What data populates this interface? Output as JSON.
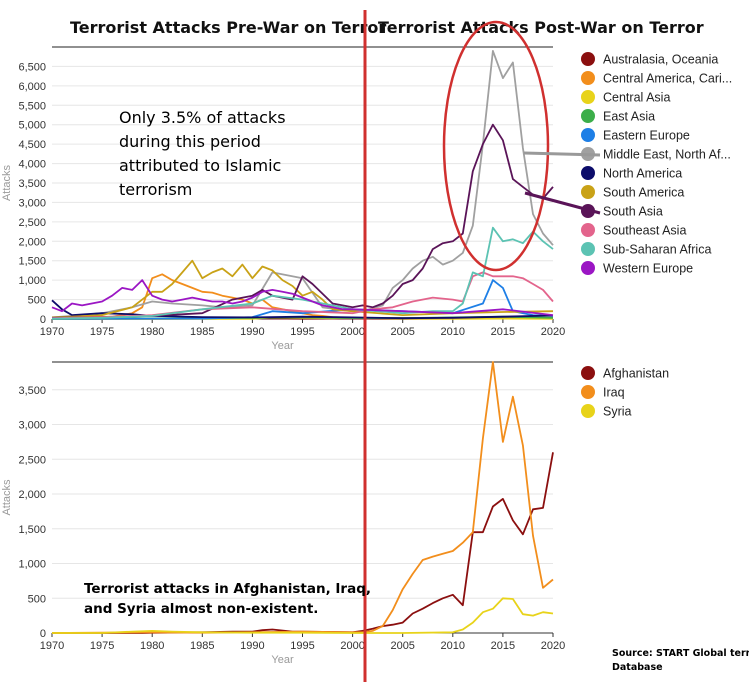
{
  "header": {
    "left_title": "Terrorist Attacks Pre-War on Terror",
    "right_title": "Terrorist Attacks Post-War on Terror"
  },
  "annotations": {
    "top_note_lines": [
      "Only 3.5% of attacks",
      "during this period",
      "attributed to Islamic",
      "terrorism"
    ],
    "bottom_note_lines": [
      "Terrorist attacks in Afghanistan, Iraq,",
      "and Syria almost non-existent."
    ],
    "source_lines": [
      "Source: START Global terrorism",
      "Database"
    ]
  },
  "colors": {
    "divider": "#d0302f",
    "ellipse": "#d0302f",
    "gridline": "#e6e6e6"
  },
  "chart_data": [
    {
      "type": "line",
      "xlabel": "Year",
      "ylabel": "Attacks",
      "xlim": [
        1970,
        2020
      ],
      "ylim": [
        0,
        7000
      ],
      "x_ticks": [
        1970,
        1975,
        1980,
        1985,
        1990,
        1995,
        2000,
        2005,
        2010,
        2015,
        2020
      ],
      "y_ticks": [
        0,
        500,
        1000,
        1500,
        2000,
        2500,
        3000,
        3500,
        4000,
        4500,
        5000,
        5500,
        6000,
        6500
      ],
      "y_tick_labels": [
        "0",
        "500",
        "1,000",
        "1,500",
        "2,000",
        "2,500",
        "3,000",
        "3,500",
        "4,000",
        "4,500",
        "5,000",
        "5,500",
        "6,000",
        "6,500"
      ],
      "x_tick_labels": [
        "1970",
        "1975",
        "1980",
        "1985",
        "1990",
        "1995",
        "2000",
        "2005",
        "2010",
        "2015",
        "2020"
      ],
      "legend": "right",
      "series": [
        {
          "name": "Australasia, Oceania",
          "color": "#8b0f0f",
          "x": [
            1970,
            1975,
            1980,
            1985,
            1990,
            1995,
            2000,
            2005,
            2010,
            2015,
            2020
          ],
          "y": [
            2,
            3,
            5,
            10,
            15,
            8,
            12,
            5,
            10,
            15,
            10
          ]
        },
        {
          "name": "Central America, Cari...",
          "color": "#f28e1c",
          "x": [
            1970,
            1972,
            1974,
            1976,
            1978,
            1979,
            1980,
            1981,
            1982,
            1983,
            1984,
            1985,
            1986,
            1987,
            1988,
            1989,
            1990,
            1991,
            1992,
            1993,
            1994,
            1995,
            1996,
            1997,
            1998,
            2000,
            2005,
            2010,
            2015,
            2020
          ],
          "y": [
            10,
            30,
            50,
            60,
            150,
            300,
            1050,
            1150,
            1000,
            900,
            800,
            700,
            680,
            600,
            550,
            500,
            400,
            500,
            300,
            250,
            200,
            150,
            100,
            80,
            50,
            30,
            20,
            15,
            10,
            10
          ]
        },
        {
          "name": "Central Asia",
          "color": "#e8d31a",
          "x": [
            1970,
            1990,
            1992,
            1995,
            1998,
            2000,
            2005,
            2010,
            2015,
            2020
          ],
          "y": [
            0,
            5,
            40,
            30,
            20,
            30,
            10,
            5,
            10,
            5
          ]
        },
        {
          "name": "East Asia",
          "color": "#3cae4a",
          "x": [
            1970,
            1975,
            1980,
            1985,
            1990,
            1995,
            2000,
            2005,
            2010,
            2015,
            2020
          ],
          "y": [
            5,
            10,
            15,
            20,
            30,
            40,
            25,
            20,
            40,
            60,
            30
          ]
        },
        {
          "name": "Eastern Europe",
          "color": "#1e7fe6",
          "x": [
            1970,
            1985,
            1990,
            1992,
            1995,
            2000,
            2005,
            2010,
            2013,
            2014,
            2015,
            2016,
            2018,
            2020
          ],
          "y": [
            5,
            10,
            50,
            200,
            150,
            250,
            200,
            150,
            400,
            1000,
            800,
            200,
            100,
            80
          ]
        },
        {
          "name": "Middle East, North Af...",
          "color": "#a0a0a0",
          "x": [
            1970,
            1972,
            1975,
            1978,
            1980,
            1982,
            1985,
            1987,
            1990,
            1992,
            1995,
            1997,
            2000,
            2001,
            2003,
            2004,
            2005,
            2006,
            2007,
            2008,
            2009,
            2010,
            2011,
            2012,
            2013,
            2014,
            2015,
            2016,
            2017,
            2018,
            2019,
            2020
          ],
          "y": [
            40,
            80,
            150,
            300,
            450,
            400,
            350,
            300,
            350,
            1200,
            1050,
            300,
            200,
            200,
            350,
            800,
            1000,
            1300,
            1500,
            1600,
            1400,
            1500,
            1700,
            2400,
            4500,
            6900,
            6200,
            6600,
            4400,
            2700,
            2200,
            1900
          ]
        },
        {
          "name": "North America",
          "color": "#0c0c6a",
          "x": [
            1970,
            1971,
            1972,
            1975,
            1978,
            1980,
            1985,
            1990,
            1995,
            2000,
            2005,
            2010,
            2015,
            2020
          ],
          "y": [
            480,
            250,
            100,
            150,
            120,
            80,
            50,
            40,
            60,
            40,
            20,
            30,
            60,
            90
          ]
        },
        {
          "name": "South America",
          "color": "#c9a217",
          "x": [
            1970,
            1972,
            1975,
            1978,
            1980,
            1981,
            1982,
            1983,
            1984,
            1985,
            1986,
            1987,
            1988,
            1989,
            1990,
            1991,
            1992,
            1993,
            1994,
            1995,
            1996,
            1997,
            1998,
            2000,
            2005,
            2010,
            2015,
            2020
          ],
          "y": [
            40,
            60,
            100,
            300,
            700,
            700,
            900,
            1200,
            1500,
            1050,
            1200,
            1300,
            1100,
            1400,
            1050,
            1350,
            1250,
            1000,
            850,
            600,
            700,
            500,
            250,
            200,
            100,
            150,
            180,
            200
          ]
        },
        {
          "name": "South Asia",
          "color": "#5a1458",
          "x": [
            1970,
            1975,
            1980,
            1985,
            1988,
            1990,
            1991,
            1992,
            1994,
            1995,
            1996,
            1998,
            2000,
            2001,
            2002,
            2003,
            2004,
            2005,
            2006,
            2007,
            2008,
            2009,
            2010,
            2011,
            2012,
            2013,
            2014,
            2015,
            2016,
            2017,
            2018,
            2019,
            2020
          ],
          "y": [
            30,
            50,
            80,
            150,
            500,
            600,
            750,
            600,
            500,
            1100,
            900,
            400,
            300,
            350,
            300,
            400,
            600,
            900,
            1000,
            1300,
            1800,
            1950,
            2000,
            2200,
            3800,
            4500,
            5000,
            4600,
            3600,
            3400,
            3200,
            3100,
            3400
          ]
        },
        {
          "name": "Southeast Asia",
          "color": "#e3648c",
          "x": [
            1970,
            1975,
            1980,
            1985,
            1990,
            1995,
            2000,
            2002,
            2004,
            2006,
            2008,
            2010,
            2011,
            2012,
            2013,
            2014,
            2015,
            2016,
            2017,
            2018,
            2019,
            2020
          ],
          "y": [
            20,
            50,
            100,
            250,
            300,
            200,
            150,
            250,
            300,
            450,
            550,
            500,
            450,
            1100,
            1200,
            1100,
            1100,
            1100,
            1050,
            900,
            750,
            450
          ]
        },
        {
          "name": "Sub-Saharan Africa",
          "color": "#5cc3b3",
          "x": [
            1970,
            1975,
            1980,
            1985,
            1990,
            1992,
            1995,
            2000,
            2005,
            2008,
            2010,
            2011,
            2012,
            2013,
            2014,
            2015,
            2016,
            2017,
            2018,
            2019,
            2020
          ],
          "y": [
            10,
            30,
            80,
            250,
            400,
            600,
            500,
            250,
            150,
            200,
            200,
            400,
            1200,
            1100,
            2350,
            2000,
            2050,
            1950,
            2250,
            2000,
            1800
          ]
        },
        {
          "name": "Western Europe",
          "color": "#9b16c4",
          "x": [
            1970,
            1971,
            1972,
            1973,
            1975,
            1976,
            1977,
            1978,
            1979,
            1980,
            1981,
            1982,
            1983,
            1984,
            1985,
            1986,
            1987,
            1988,
            1989,
            1990,
            1991,
            1992,
            1993,
            1994,
            1995,
            1996,
            1997,
            1998,
            1999,
            2000,
            2005,
            2010,
            2015,
            2020
          ],
          "y": [
            300,
            200,
            400,
            350,
            450,
            600,
            800,
            750,
            1000,
            600,
            500,
            450,
            500,
            550,
            500,
            450,
            450,
            400,
            450,
            550,
            700,
            750,
            700,
            650,
            550,
            450,
            350,
            300,
            250,
            250,
            200,
            150,
            250,
            100
          ]
        }
      ]
    },
    {
      "type": "line",
      "xlabel": "Year",
      "ylabel": "Attacks",
      "xlim": [
        1970,
        2020
      ],
      "ylim": [
        0,
        3900
      ],
      "x_ticks": [
        1970,
        1975,
        1980,
        1985,
        1990,
        1995,
        2000,
        2005,
        2010,
        2015,
        2020
      ],
      "y_ticks": [
        0,
        500,
        1000,
        1500,
        2000,
        2500,
        3000,
        3500
      ],
      "y_tick_labels": [
        "0",
        "500",
        "1,000",
        "1,500",
        "2,000",
        "2,500",
        "3,000",
        "3,500"
      ],
      "x_tick_labels": [
        "1970",
        "1975",
        "1980",
        "1985",
        "1990",
        "1995",
        "2000",
        "2005",
        "2010",
        "2015",
        "2020"
      ],
      "legend": "right",
      "series": [
        {
          "name": "Afghanistan",
          "color": "#8b0f0f",
          "x": [
            1970,
            1979,
            1980,
            1985,
            1988,
            1990,
            1991,
            1992,
            1994,
            1995,
            2000,
            2001,
            2002,
            2003,
            2004,
            2005,
            2006,
            2007,
            2008,
            2009,
            2010,
            2011,
            2012,
            2013,
            2014,
            2015,
            2016,
            2017,
            2018,
            2019,
            2020
          ],
          "y": [
            0,
            0,
            5,
            10,
            20,
            20,
            40,
            50,
            20,
            20,
            10,
            30,
            60,
            100,
            120,
            150,
            280,
            350,
            430,
            500,
            550,
            400,
            1450,
            1450,
            1820,
            1930,
            1620,
            1420,
            1780,
            1800,
            2600
          ]
        },
        {
          "name": "Iraq",
          "color": "#f28e1c",
          "x": [
            1970,
            1975,
            1980,
            1985,
            1990,
            1995,
            2000,
            2001,
            2002,
            2003,
            2004,
            2005,
            2006,
            2007,
            2008,
            2009,
            2010,
            2011,
            2012,
            2013,
            2014,
            2015,
            2016,
            2017,
            2018,
            2019,
            2020
          ],
          "y": [
            0,
            5,
            10,
            5,
            10,
            20,
            10,
            10,
            30,
            100,
            330,
            630,
            850,
            1050,
            1100,
            1140,
            1180,
            1300,
            1450,
            2800,
            3900,
            2750,
            3400,
            2700,
            1400,
            650,
            770
          ]
        },
        {
          "name": "Syria",
          "color": "#e8d31a",
          "x": [
            1970,
            1975,
            1978,
            1980,
            1982,
            1985,
            1990,
            1995,
            2000,
            2005,
            2010,
            2011,
            2012,
            2013,
            2014,
            2015,
            2016,
            2017,
            2018,
            2019,
            2020
          ],
          "y": [
            0,
            0,
            20,
            30,
            20,
            10,
            5,
            5,
            0,
            0,
            10,
            50,
            150,
            300,
            350,
            500,
            490,
            270,
            250,
            300,
            280
          ]
        }
      ]
    }
  ]
}
